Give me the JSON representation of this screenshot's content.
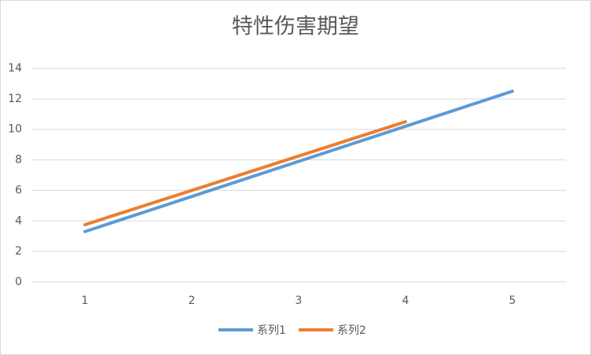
{
  "chart_data": {
    "type": "line",
    "title": "特性伤害期望",
    "categories": [
      "1",
      "2",
      "3",
      "4",
      "5"
    ],
    "series": [
      {
        "name": "系列1",
        "color": "#5b9bd5",
        "values": [
          3.3,
          5.6,
          7.9,
          10.2,
          12.5
        ]
      },
      {
        "name": "系列2",
        "color": "#ed7d31",
        "values": [
          3.75,
          6.0,
          8.25,
          10.5,
          null
        ]
      }
    ],
    "ylim": [
      0,
      14
    ],
    "yticks": [
      0,
      2,
      4,
      6,
      8,
      10,
      12,
      14
    ],
    "grid": true,
    "legend": "bottom"
  }
}
